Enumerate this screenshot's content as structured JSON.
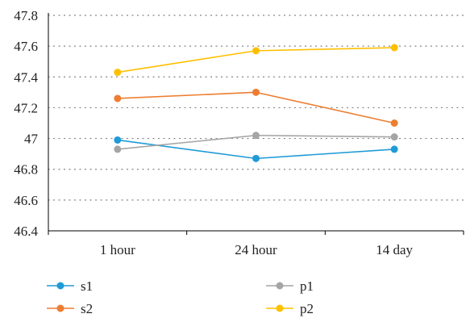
{
  "chart_data": {
    "type": "line",
    "categories": [
      "1 hour",
      "24 hour",
      "14 day"
    ],
    "series": [
      {
        "name": "s1",
        "color": "#1f9bd7",
        "values": [
          46.99,
          46.87,
          46.93
        ]
      },
      {
        "name": "s2",
        "color": "#ed7d31",
        "values": [
          47.26,
          47.3,
          47.1
        ]
      },
      {
        "name": "p1",
        "color": "#a5a5a5",
        "values": [
          46.93,
          47.02,
          47.01
        ]
      },
      {
        "name": "p2",
        "color": "#ffc000",
        "values": [
          47.43,
          47.57,
          47.59
        ]
      }
    ],
    "y_ticks": [
      "46.4",
      "46.6",
      "46.8",
      "47",
      "47.2",
      "47.4",
      "47.6",
      "47.8"
    ],
    "ylim": [
      46.4,
      47.8
    ],
    "grid": "horizontal dotted",
    "legend_position": "bottom"
  }
}
